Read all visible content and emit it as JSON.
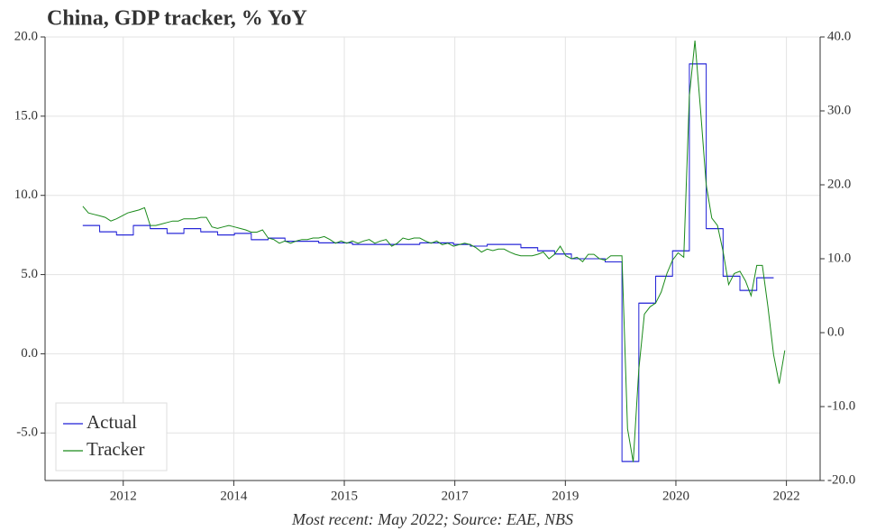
{
  "chart_data": {
    "type": "line",
    "title": "China, GDP tracker, % YoY",
    "caption": "Most recent: May 2022; Source: EAE, NBS",
    "xlim": [
      2011.44,
      2022.94
    ],
    "xticks": [
      {
        "value": 2012.6,
        "label": "2012"
      },
      {
        "value": 2014.24,
        "label": "2014"
      },
      {
        "value": 2015.88,
        "label": "2015"
      },
      {
        "value": 2017.52,
        "label": "2017"
      },
      {
        "value": 2019.16,
        "label": "2019"
      },
      {
        "value": 2020.8,
        "label": "2020"
      },
      {
        "value": 2022.44,
        "label": "2022"
      }
    ],
    "ylim": [
      -8,
      20
    ],
    "yticks": [
      {
        "value": -5,
        "label": "-5.0"
      },
      {
        "value": 0,
        "label": "0.0"
      },
      {
        "value": 5,
        "label": "5.0"
      },
      {
        "value": 10,
        "label": "10.0"
      },
      {
        "value": 15,
        "label": "15.0"
      },
      {
        "value": 20,
        "label": "20.0"
      }
    ],
    "y2lim": [
      -20,
      40
    ],
    "y2ticks": [
      {
        "value": -20,
        "label": "-20.0"
      },
      {
        "value": -10,
        "label": "-10.0"
      },
      {
        "value": 0,
        "label": "0.0"
      },
      {
        "value": 10,
        "label": "10.0"
      },
      {
        "value": 20,
        "label": "20.0"
      },
      {
        "value": 30,
        "label": "30.0"
      },
      {
        "value": 40,
        "label": "40.0"
      }
    ],
    "grid": true,
    "legend": "lower left",
    "series": [
      {
        "name": "Actual",
        "color": "#1f1fd6",
        "step": true,
        "step_width": 0.25,
        "x": [
          2012,
          2012.25,
          2012.5,
          2012.75,
          2013,
          2013.25,
          2013.5,
          2013.75,
          2014,
          2014.25,
          2014.5,
          2014.75,
          2015,
          2015.25,
          2015.5,
          2015.75,
          2016,
          2016.25,
          2016.5,
          2016.75,
          2017,
          2017.25,
          2017.5,
          2017.75,
          2018,
          2018.25,
          2018.5,
          2018.75,
          2019,
          2019.25,
          2019.5,
          2019.75,
          2020,
          2020.25,
          2020.5,
          2020.75,
          2021,
          2021.25,
          2021.5,
          2021.75,
          2022
        ],
        "values": [
          8.1,
          7.7,
          7.5,
          8.1,
          7.9,
          7.6,
          7.9,
          7.7,
          7.5,
          7.6,
          7.2,
          7.3,
          7.1,
          7.1,
          7.0,
          7.0,
          6.9,
          6.9,
          6.9,
          6.9,
          7.0,
          7.0,
          6.9,
          6.8,
          6.9,
          6.9,
          6.7,
          6.5,
          6.3,
          6.0,
          6.0,
          5.8,
          -6.8,
          3.2,
          4.9,
          6.5,
          18.3,
          7.9,
          4.9,
          4.0,
          4.8
        ]
      },
      {
        "name": "Tracker",
        "color": "#1a8a1a",
        "axis": "y2",
        "start": 2012,
        "step_x": 0.08333,
        "values": [
          17.1,
          16.2,
          16.0,
          15.8,
          15.6,
          15.1,
          15.4,
          15.8,
          16.2,
          16.4,
          16.6,
          16.9,
          14.5,
          14.5,
          14.7,
          14.9,
          15.1,
          15.1,
          15.4,
          15.4,
          15.4,
          15.6,
          15.6,
          14.3,
          14.1,
          14.3,
          14.5,
          14.3,
          14.1,
          13.9,
          13.6,
          13.6,
          13.9,
          12.8,
          12.6,
          12.1,
          12.4,
          12.1,
          12.4,
          12.6,
          12.6,
          12.8,
          12.8,
          13.0,
          12.6,
          12.1,
          12.4,
          12.1,
          12.4,
          12.1,
          12.4,
          12.6,
          12.1,
          12.4,
          12.6,
          11.7,
          12.1,
          12.8,
          12.6,
          12.8,
          12.8,
          12.4,
          12.1,
          12.4,
          11.9,
          12.1,
          11.7,
          11.9,
          12.1,
          11.9,
          11.5,
          10.9,
          11.3,
          11.1,
          11.3,
          11.3,
          10.9,
          10.6,
          10.4,
          10.4,
          10.4,
          10.6,
          10.9,
          10.0,
          10.6,
          11.7,
          10.4,
          10.0,
          10.2,
          9.6,
          10.6,
          10.6,
          10.0,
          9.8,
          10.4,
          10.4,
          10.4,
          -13.0,
          -17.5,
          -5.0,
          2.5,
          3.5,
          4.0,
          5.5,
          8.0,
          9.8,
          10.8,
          10.2,
          32.0,
          39.5,
          30.0,
          20.0,
          15.5,
          14.5,
          11.0,
          6.5,
          8.0,
          8.3,
          7.0,
          5.0,
          9.1,
          9.1,
          3.5,
          -3.0,
          -6.9,
          -2.4
        ]
      }
    ]
  }
}
